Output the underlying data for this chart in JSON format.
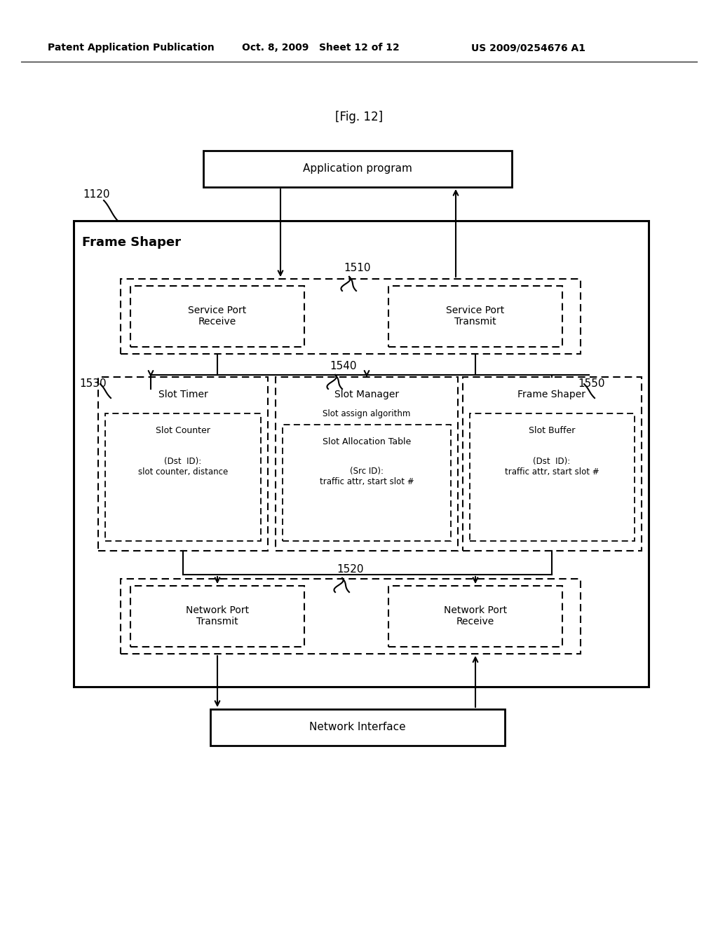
{
  "header_left": "Patent Application Publication",
  "header_mid": "Oct. 8, 2009   Sheet 12 of 12",
  "header_right": "US 2009/0254676 A1",
  "fig_label": "[Fig. 12]",
  "app_box_text": "Application program",
  "outer_label": "Frame Shaper",
  "label_1120": "1120",
  "label_1510": "1510",
  "label_1530": "1530",
  "label_1540": "1540",
  "label_1550": "1550",
  "label_1520": "1520",
  "spr_label": "Service Port\nReceive",
  "spt_label": "Service Port\nTransmit",
  "slot_timer_label": "Slot Timer",
  "slot_counter_label": "Slot Counter\n(Dst  ID):\nslot counter, distance",
  "slot_manager_label": "Slot Manager",
  "slot_assign_label": "Slot assign algorithm",
  "slot_alloc_label": "Slot Allocation Table\n(Src ID):\ntraffic attr, start slot #",
  "frame_shaper_inner_label": "Frame Shaper",
  "slot_buffer_label": "Slot Buffer\n(Dst  ID):\ntraffic attr, start slot #",
  "npt_label": "Network Port\nTransmit",
  "npr_label": "Network Port\nReceive",
  "net_iface_label": "Network Interface"
}
